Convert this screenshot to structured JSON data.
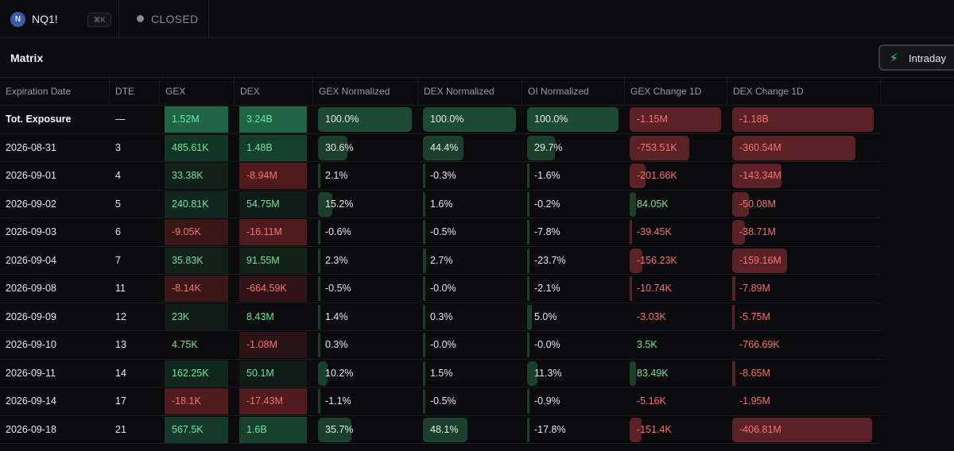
{
  "topbar": {
    "avatar_letter": "N",
    "symbol": "NQ1!",
    "shortcut": "⌘K",
    "status": "CLOSED"
  },
  "matrix": {
    "title": "Matrix",
    "mode_label": "Intraday",
    "mode_icon": "lightning-bolt-icon"
  },
  "colors": {
    "positive": "#6ee7a0",
    "negative": "#f87171",
    "positive_bar": "#1e4d36",
    "negative_bar": "#5a2226",
    "accent": "#34d399"
  },
  "columns": [
    "Expiration Date",
    "DTE",
    "GEX",
    "DEX",
    "GEX Normalized",
    "DEX Normalized",
    "OI Normalized",
    "GEX Change 1D",
    "DEX Change 1D"
  ],
  "rows": [
    {
      "date": "Tot. Exposure",
      "dte": "—",
      "gex": "1.52M",
      "dex": "3.24B",
      "gexn": "100.0%",
      "dexn": "100.0%",
      "oin": "100.0%",
      "gexc": "-1.15M",
      "dexc": "-1.18B"
    },
    {
      "date": "2026-08-31",
      "dte": "3",
      "gex": "485.61K",
      "dex": "1.48B",
      "gexn": "30.6%",
      "dexn": "44.4%",
      "oin": "29.7%",
      "gexc": "-753.51K",
      "dexc": "-360.54M"
    },
    {
      "date": "2026-09-01",
      "dte": "4",
      "gex": "33.38K",
      "dex": "-8.94M",
      "gexn": "2.1%",
      "dexn": "-0.3%",
      "oin": "-1.6%",
      "gexc": "-201.66K",
      "dexc": "-143.34M"
    },
    {
      "date": "2026-09-02",
      "dte": "5",
      "gex": "240.81K",
      "dex": "54.75M",
      "gexn": "15.2%",
      "dexn": "1.6%",
      "oin": "-0.2%",
      "gexc": "84.05K",
      "dexc": "-50.08M"
    },
    {
      "date": "2026-09-03",
      "dte": "6",
      "gex": "-9.05K",
      "dex": "-16.11M",
      "gexn": "-0.6%",
      "dexn": "-0.5%",
      "oin": "-7.8%",
      "gexc": "-39.45K",
      "dexc": "-38.71M"
    },
    {
      "date": "2026-09-04",
      "dte": "7",
      "gex": "35.83K",
      "dex": "91.55M",
      "gexn": "2.3%",
      "dexn": "2.7%",
      "oin": "-23.7%",
      "gexc": "-156.23K",
      "dexc": "-159.16M"
    },
    {
      "date": "2026-09-08",
      "dte": "11",
      "gex": "-8.14K",
      "dex": "-664.59K",
      "gexn": "-0.5%",
      "dexn": "-0.0%",
      "oin": "-2.1%",
      "gexc": "-10.74K",
      "dexc": "-7.89M"
    },
    {
      "date": "2026-09-09",
      "dte": "12",
      "gex": "23K",
      "dex": "8.43M",
      "gexn": "1.4%",
      "dexn": "0.3%",
      "oin": "5.0%",
      "gexc": "-3.03K",
      "dexc": "-5.75M"
    },
    {
      "date": "2026-09-10",
      "dte": "13",
      "gex": "4.75K",
      "dex": "-1.08M",
      "gexn": "0.3%",
      "dexn": "-0.0%",
      "oin": "-0.0%",
      "gexc": "3.5K",
      "dexc": "-766.69K"
    },
    {
      "date": "2026-09-11",
      "dte": "14",
      "gex": "162.25K",
      "dex": "50.1M",
      "gexn": "10.2%",
      "dexn": "1.5%",
      "oin": "11.3%",
      "gexc": "83.49K",
      "dexc": "-8.65M"
    },
    {
      "date": "2026-09-14",
      "dte": "17",
      "gex": "-18.1K",
      "dex": "-17.43M",
      "gexn": "-1.1%",
      "dexn": "-0.5%",
      "oin": "-0.9%",
      "gexc": "-5.16K",
      "dexc": "-1.95M"
    },
    {
      "date": "2026-09-18",
      "dte": "21",
      "gex": "567.5K",
      "dex": "1.6B",
      "gexn": "35.7%",
      "dexn": "48.1%",
      "oin": "-17.8%",
      "gexc": "-151.4K",
      "dexc": "-406.81M"
    }
  ],
  "levels": {
    "gex_heat": [
      1.0,
      0.32,
      0.06,
      0.16,
      -0.03,
      0.06,
      -0.03,
      0.03,
      0.02,
      0.11,
      -0.06,
      0.37
    ],
    "dex_heat": [
      1.0,
      0.46,
      -0.06,
      0.03,
      -0.06,
      0.06,
      -0.02,
      0.02,
      -0.01,
      0.03,
      -0.06,
      0.49
    ],
    "gexn_bar": [
      1.0,
      0.31,
      0.02,
      0.15,
      0.0,
      0.02,
      0.0,
      0.01,
      0.0,
      0.1,
      0.0,
      0.36
    ],
    "dexn_bar": [
      1.0,
      0.44,
      0.0,
      0.02,
      0.0,
      0.03,
      0.0,
      0.0,
      0.0,
      0.02,
      0.0,
      0.48
    ],
    "oin_bar": [
      1.0,
      0.3,
      0.0,
      0.0,
      0.0,
      0.0,
      0.0,
      0.05,
      0.0,
      0.11,
      0.0,
      0.0
    ],
    "gexc_bar": [
      -1.0,
      -0.65,
      -0.17,
      0.07,
      -0.03,
      -0.14,
      -0.01,
      0.0,
      0.0,
      0.07,
      0.0,
      -0.13
    ],
    "dexc_bar": [
      -1.0,
      -0.87,
      -0.35,
      -0.12,
      -0.09,
      -0.39,
      -0.02,
      -0.01,
      0.0,
      -0.02,
      0.0,
      -0.99
    ]
  }
}
